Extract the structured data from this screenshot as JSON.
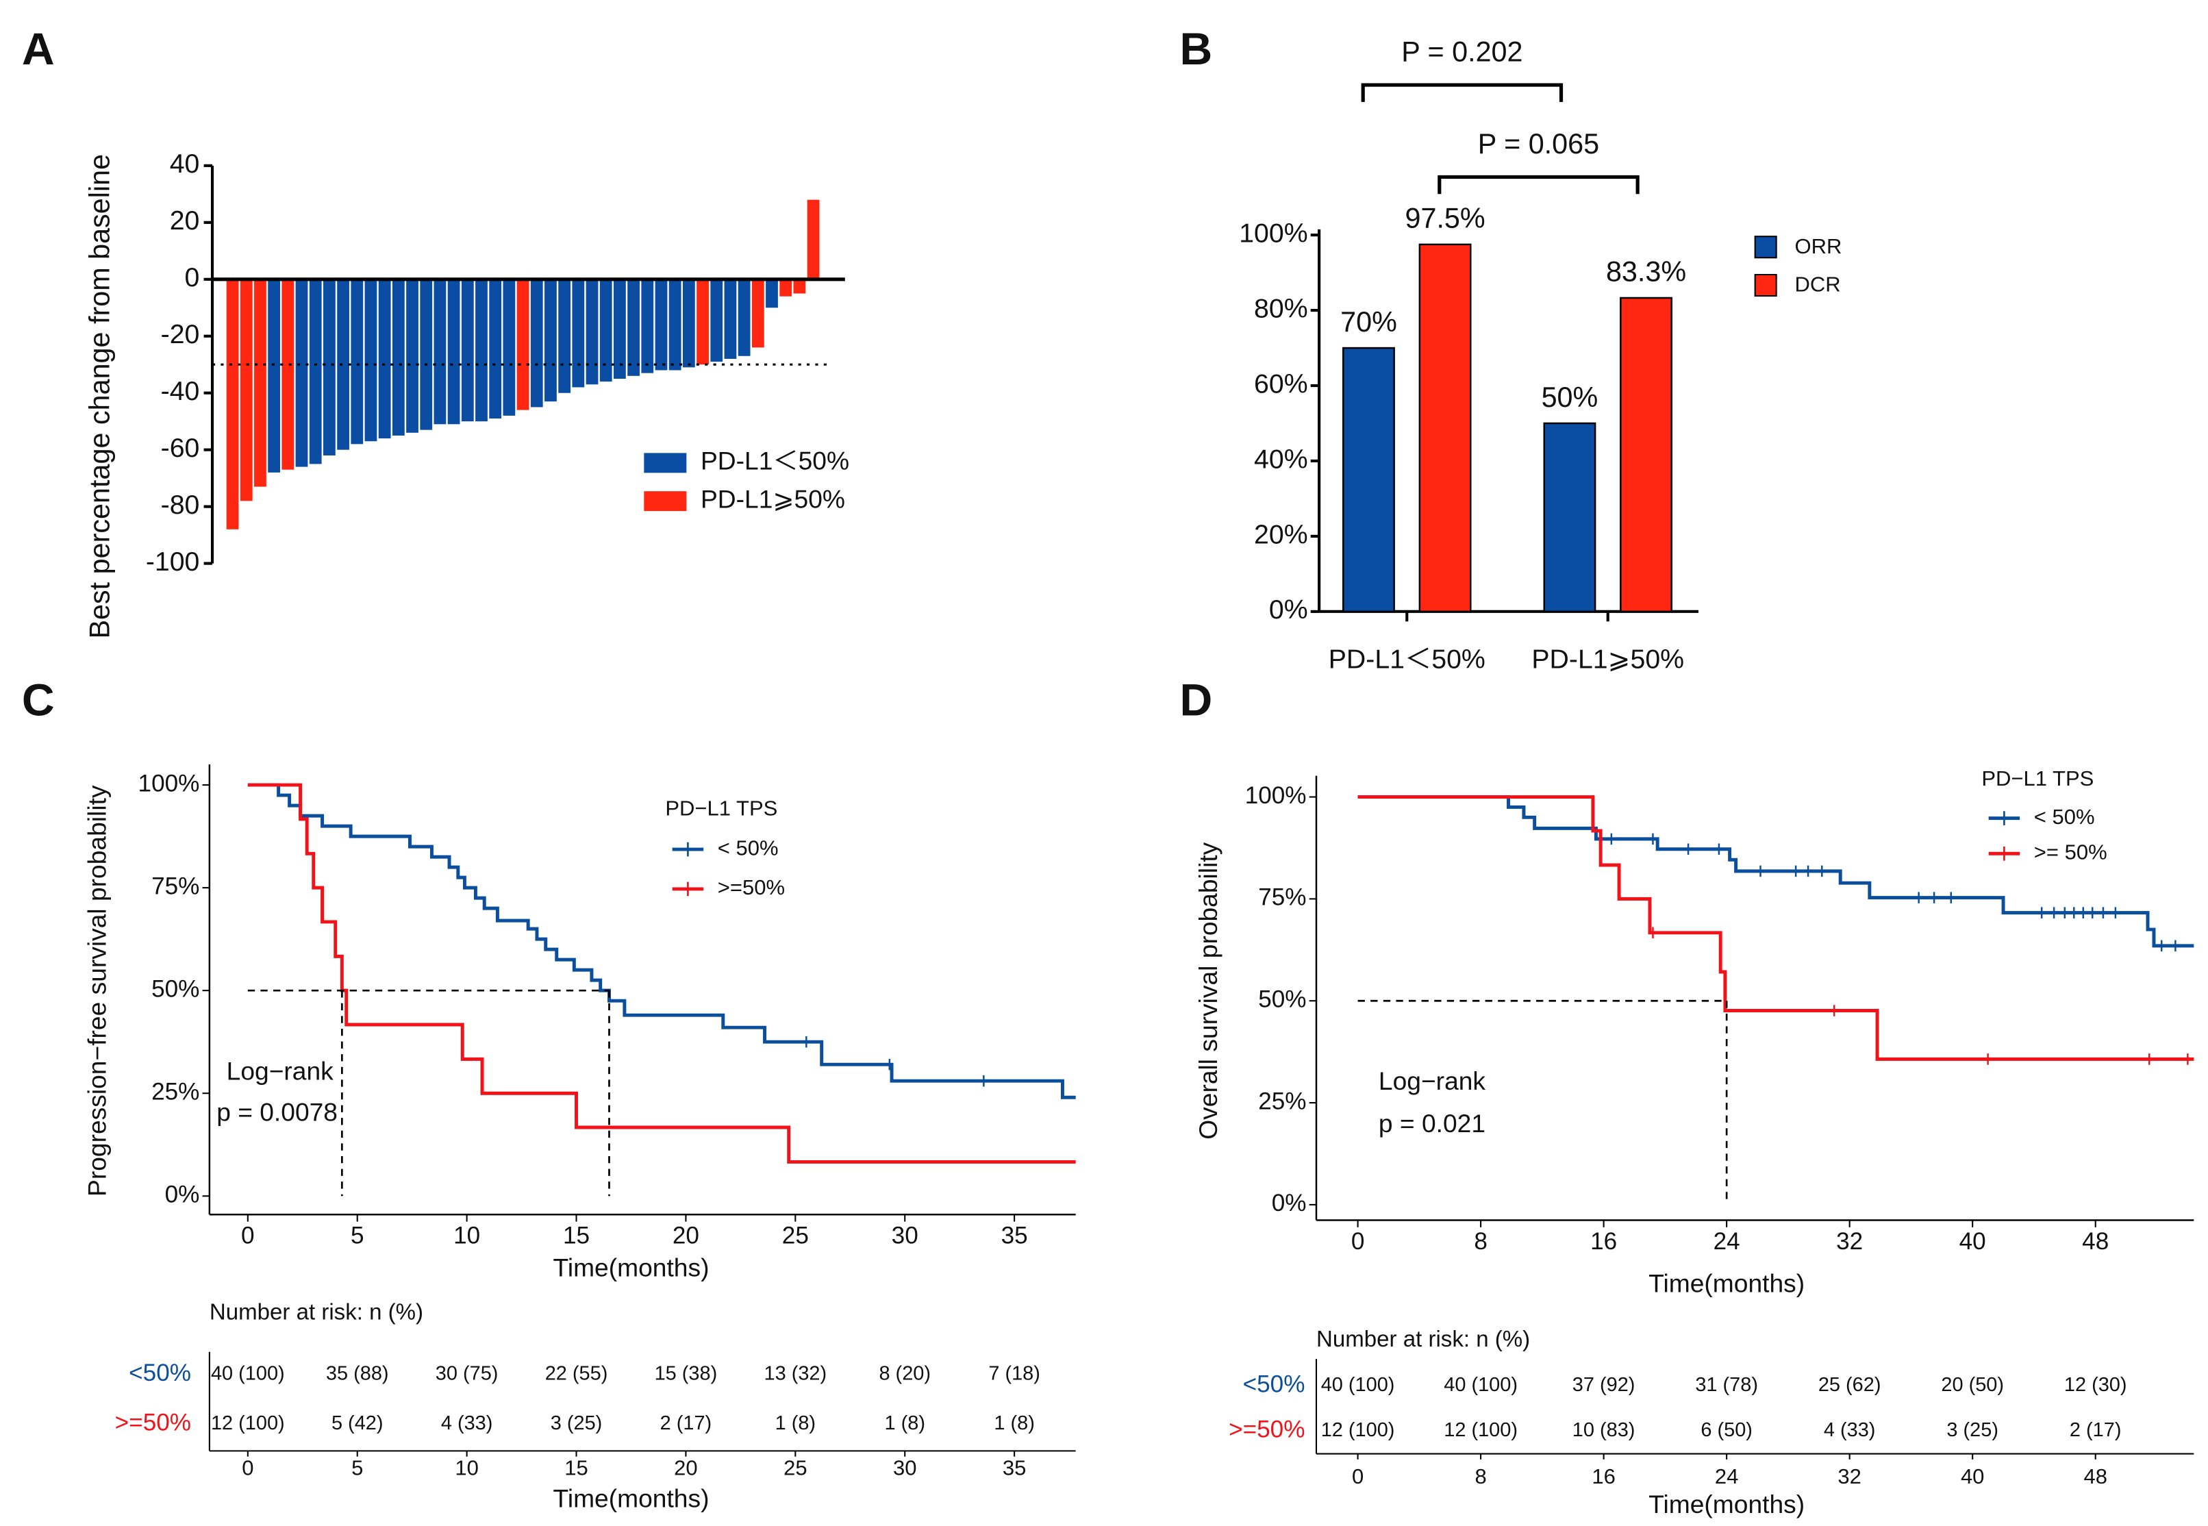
{
  "chart_data": [
    {
      "type": "waterfall",
      "panel": "A",
      "y_label": "Best percentage change from baseline",
      "ylim": [
        -100,
        40
      ],
      "yticks": [
        -100,
        -80,
        -60,
        -40,
        -20,
        0,
        20,
        40
      ],
      "reference_line": -30,
      "series": [
        {
          "name": "PD-L1＜50%",
          "color": "#0b4da2",
          "values": [
            null,
            null,
            null,
            -68,
            null,
            -66,
            -65,
            -62,
            -60,
            -58,
            -57,
            -56,
            -55,
            -54,
            -53,
            -51,
            -51,
            -50,
            -50,
            -49,
            -48,
            null,
            -45,
            -43,
            -40,
            -38,
            -37,
            -36,
            -35,
            -34,
            -33,
            -32,
            -32,
            -31,
            null,
            -29,
            -28,
            -27,
            null,
            -10,
            null,
            null,
            null
          ]
        },
        {
          "name": "PD-L1⩾50%",
          "color": "#ff2712",
          "values": [
            -88,
            -78,
            -73,
            null,
            -67,
            null,
            null,
            null,
            null,
            null,
            null,
            null,
            null,
            null,
            null,
            null,
            null,
            null,
            null,
            null,
            null,
            -46,
            null,
            null,
            null,
            null,
            null,
            null,
            null,
            null,
            null,
            null,
            null,
            null,
            -30,
            null,
            null,
            null,
            -24,
            null,
            -6,
            -5,
            28
          ]
        }
      ]
    },
    {
      "type": "bar",
      "panel": "B",
      "categories": [
        "PD-L1＜50%",
        "PD-L1⩾50%"
      ],
      "ylim": [
        0,
        100
      ],
      "yticks": [
        {
          "value": 0,
          "label": "0%"
        },
        {
          "value": 20,
          "label": "20%"
        },
        {
          "value": 40,
          "label": "40%"
        },
        {
          "value": 60,
          "label": "60%"
        },
        {
          "value": 80,
          "label": "80%"
        },
        {
          "value": 100,
          "label": "100%"
        }
      ],
      "series": [
        {
          "name": "ORR",
          "color": "#0b4da2",
          "values": [
            70,
            50
          ],
          "value_labels": [
            "70%",
            "50%"
          ]
        },
        {
          "name": "DCR",
          "color": "#ff2712",
          "values": [
            97.5,
            83.3
          ],
          "value_labels": [
            "97.5%",
            "83.3%"
          ]
        }
      ],
      "comparisons": [
        "P = 0.202",
        "P = 0.065"
      ]
    },
    {
      "type": "survival",
      "panel": "C",
      "y_label": "Progression−free survival probability",
      "x_label": "Time(months)",
      "xlim": [
        -1.75,
        37.8
      ],
      "xticks": [
        0,
        5,
        10,
        15,
        20,
        25,
        30,
        35
      ],
      "ylim": [
        -4.5,
        105
      ],
      "yticks": [
        {
          "value": 0,
          "label": "0%"
        },
        {
          "value": 25,
          "label": "25%"
        },
        {
          "value": 50,
          "label": "50%"
        },
        {
          "value": 75,
          "label": "75%"
        },
        {
          "value": 100,
          "label": "100%"
        }
      ],
      "legend_title": "PD−L1 TPS",
      "series": [
        {
          "name": "< 50%",
          "color": "#0b4f9c",
          "x": [
            0,
            1.4,
            1.9,
            2.4,
            3.4,
            4.7,
            7.4,
            8.4,
            9.2,
            9.6,
            9.9,
            10.4,
            10.8,
            11.4,
            12.8,
            13.2,
            13.6,
            14.1,
            14.9,
            15.7,
            16.1,
            16.5,
            17.2,
            21.7,
            23.6,
            26.2,
            29.4,
            37.2,
            37.8
          ],
          "values": [
            100,
            97.5,
            95,
            92.5,
            90,
            87.5,
            85,
            82.5,
            80,
            77.5,
            75,
            72.5,
            70,
            67,
            65,
            62.5,
            60,
            57.5,
            55,
            52.5,
            50,
            47.5,
            44,
            41,
            37.5,
            32,
            28,
            24,
            24
          ],
          "censored_x": [
            25.5,
            29.3,
            33.6
          ]
        },
        {
          "name": ">=50%",
          "color": "#f0141a",
          "x": [
            0,
            2.4,
            2.7,
            3.0,
            3.4,
            4.0,
            4.3,
            4.5,
            9.8,
            10.7,
            15.0,
            24.7,
            37.8
          ],
          "values": [
            100,
            91.7,
            83.3,
            75,
            66.7,
            58.3,
            50,
            41.7,
            33.3,
            25,
            16.7,
            8.3,
            8.3
          ],
          "censored_x": []
        }
      ],
      "median_level": 50,
      "medians": [
        4.3,
        16.5
      ],
      "annotations": [
        "Log−rank",
        "p = 0.0078"
      ],
      "risk_table": {
        "title": "Number at risk: n (%)",
        "rows": [
          {
            "label": "<50%",
            "values": [
              "40 (100)",
              "35 (88)",
              "30 (75)",
              "22 (55)",
              "15 (38)",
              "13 (32)",
              "8 (20)",
              "7 (18)"
            ]
          },
          {
            "label": ">=50%",
            "values": [
              "12 (100)",
              "5 (42)",
              "4 (33)",
              "3 (25)",
              "2 (17)",
              "1 (8)",
              "1 (8)",
              "1 (8)"
            ]
          }
        ]
      }
    },
    {
      "type": "survival",
      "panel": "D",
      "y_label": "Overall survival probability",
      "x_label": "Time(months)",
      "xlim": [
        -2.7,
        54.4
      ],
      "xticks": [
        0,
        8,
        16,
        24,
        32,
        40,
        48
      ],
      "ylim": [
        -3.8,
        105.2
      ],
      "yticks": [
        {
          "value": 0,
          "label": "0%"
        },
        {
          "value": 25,
          "label": "25%"
        },
        {
          "value": 50,
          "label": "50%"
        },
        {
          "value": 75,
          "label": "75%"
        },
        {
          "value": 100,
          "label": "100%"
        }
      ],
      "legend_title": "PD−L1 TPS",
      "series": [
        {
          "name": "< 50%",
          "color": "#0b4f9c",
          "x": [
            0,
            9.8,
            10.8,
            11.5,
            15.5,
            19.5,
            24.2,
            24.6,
            31.4,
            33.3,
            42.0,
            51.4,
            51.8,
            54.4
          ],
          "values": [
            100,
            97.5,
            95,
            92.3,
            89.7,
            87.2,
            84.6,
            81.8,
            78.9,
            75.3,
            71.6,
            67.5,
            63.5,
            63.5
          ],
          "censored_x": [
            16.5,
            19.2,
            21.5,
            23.5,
            26.2,
            28.5,
            29.3,
            30.2,
            36.5,
            37.5,
            38.6,
            44.5,
            45.3,
            46.0,
            46.6,
            47.2,
            47.8,
            48.5,
            49.3,
            52.3,
            53.2
          ]
        },
        {
          "name": ">= 50%",
          "color": "#f0141a",
          "x": [
            0,
            15.3,
            15.8,
            17.0,
            19.0,
            23.6,
            23.9,
            33.8,
            54.4
          ],
          "values": [
            100,
            91.7,
            83.3,
            75,
            66.7,
            57.1,
            47.6,
            35.7,
            35.7
          ],
          "censored_x": [
            19.2,
            31.0,
            41.0,
            51.5,
            54.0
          ]
        }
      ],
      "median_level": 50,
      "medians": [
        24
      ],
      "annotations": [
        "Log−rank",
        "p = 0.021"
      ],
      "risk_table": {
        "title": "Number at risk: n (%)",
        "rows": [
          {
            "label": "<50%",
            "values": [
              "40 (100)",
              "40 (100)",
              "37 (92)",
              "31 (78)",
              "25 (62)",
              "20 (50)",
              "12 (30)"
            ]
          },
          {
            "label": ">=50%",
            "values": [
              "12 (100)",
              "12 (100)",
              "10 (83)",
              "6 (50)",
              "4 (33)",
              "3 (25)",
              "2 (17)"
            ]
          }
        ]
      }
    }
  ]
}
